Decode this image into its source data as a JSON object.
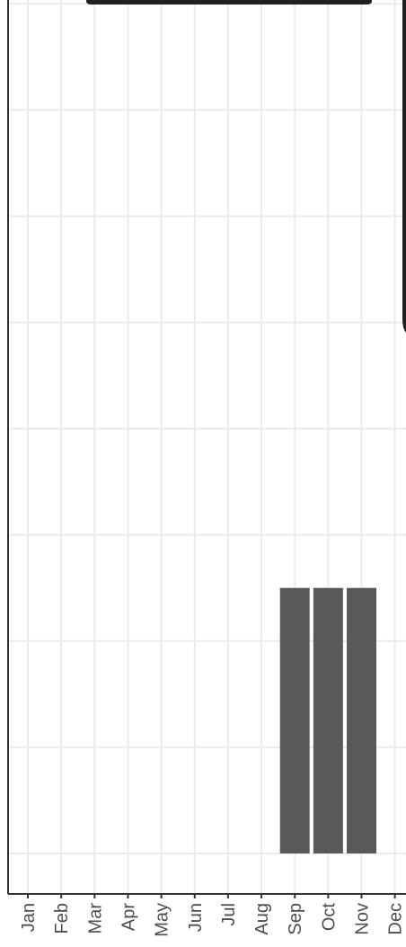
{
  "chart_data": {
    "type": "bar",
    "title": "",
    "xlabel": "",
    "ylabel": "",
    "categories": [
      "Jan",
      "Feb",
      "Mar",
      "Apr",
      "May",
      "Jun",
      "Jul",
      "Aug",
      "Sep",
      "Oct",
      "Nov",
      "Dec"
    ],
    "values": [
      0,
      0,
      0,
      0,
      0,
      0,
      0,
      0,
      2.5,
      2.5,
      2.5,
      0
    ],
    "ylim": [
      0,
      8
    ],
    "grid": true,
    "bar_color": "#595959",
    "grid_color": "#ebebeb",
    "axis_color": "#333333",
    "label_color": "#4d4d4d"
  }
}
